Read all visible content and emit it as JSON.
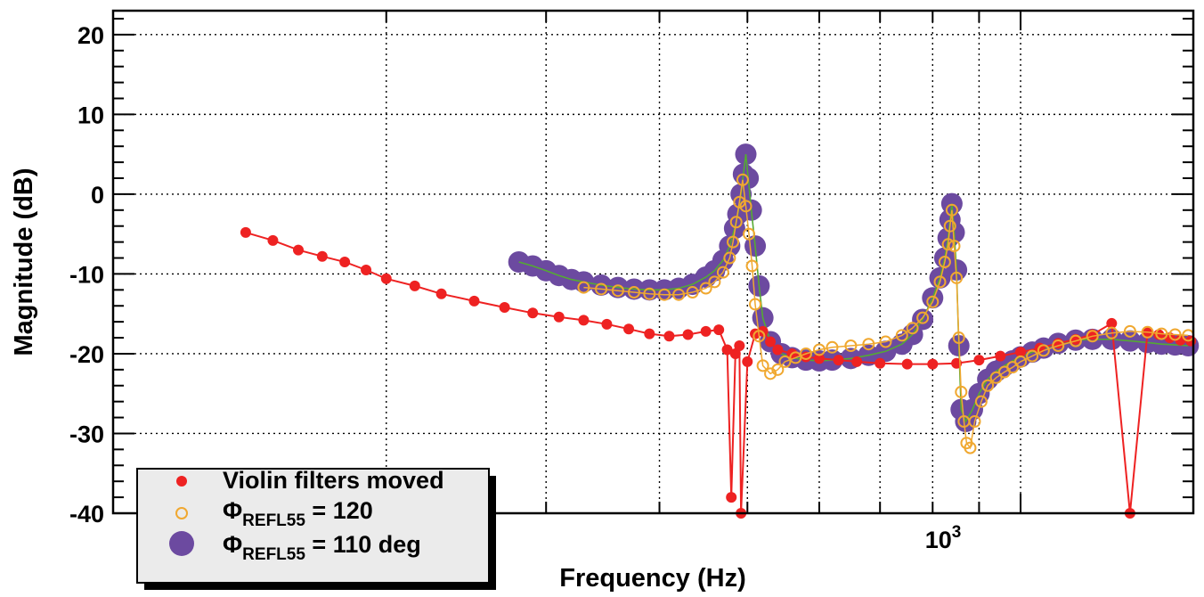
{
  "chart_data": {
    "type": "scatter",
    "title": "",
    "xlabel": "Frequency (Hz)",
    "ylabel": "Magnitude (dB)",
    "xscale": "log",
    "xlim": [
      100,
      1550
    ],
    "ylim": [
      -40,
      23
    ],
    "grid": true,
    "legend_position": "bottom-left",
    "y_ticks": [
      20,
      10,
      0,
      -10,
      -20,
      -30,
      -40
    ],
    "y_tick_labels": [
      "20",
      "10",
      "0",
      "-10",
      "-20",
      "-30",
      "-40"
    ],
    "x_tick_label": {
      "base": "10",
      "exp": "3",
      "value": 1000
    },
    "series": [
      {
        "name": "Violin filters moved",
        "label_html": "Violin filters moved",
        "style": "red-dots-line",
        "color": "#ee2222",
        "x": [
          140,
          150,
          160,
          170,
          180,
          190,
          200,
          215,
          230,
          250,
          270,
          290,
          310,
          330,
          350,
          370,
          390,
          410,
          430,
          450,
          465,
          475,
          480,
          485,
          490,
          492,
          500,
          510,
          520,
          530,
          540,
          560,
          580,
          600,
          630,
          660,
          700,
          750,
          800,
          850,
          900,
          950,
          1000,
          1050,
          1100,
          1150,
          1200,
          1260,
          1320,
          1380,
          1420,
          1460,
          1500,
          1540
        ],
        "y": [
          -4.8,
          -5.8,
          -7,
          -7.8,
          -8.5,
          -9.5,
          -10.6,
          -11.5,
          -12.5,
          -13.4,
          -14.2,
          -14.9,
          -15.4,
          -15.8,
          -16.3,
          -16.9,
          -17.5,
          -17.8,
          -17.6,
          -17.2,
          -17,
          -19.5,
          -38,
          -20,
          -19,
          -40,
          -21,
          -17.5,
          -17.2,
          -18.5,
          -19.5,
          -20,
          -20.4,
          -20.6,
          -20.8,
          -21,
          -21.2,
          -21.3,
          -21.3,
          -21.2,
          -20.8,
          -20.3,
          -19.8,
          -19.3,
          -18.7,
          -18.2,
          -17.6,
          -16.2,
          -40,
          -17.3,
          -17.6,
          -18,
          -18.3,
          -18.4
        ]
      },
      {
        "name": "Φ REFL55 = 120",
        "label_html": "Φ<tspan font-size='19' dy='8'>REFL55</tspan><tspan dy='-8'> = 120</tspan>",
        "style": "orange-open-line",
        "color": "#f0a830",
        "x": [
          330,
          345,
          360,
          375,
          390,
          405,
          420,
          435,
          450,
          460,
          470,
          478,
          482,
          486,
          490,
          494,
          498,
          502,
          506,
          510,
          515,
          520,
          530,
          540,
          550,
          565,
          580,
          600,
          620,
          650,
          680,
          710,
          740,
          760,
          780,
          800,
          815,
          825,
          832,
          836,
          840,
          845,
          850,
          855,
          860,
          866,
          872,
          880,
          890,
          905,
          920,
          940,
          960,
          980,
          1000,
          1030,
          1060,
          1100,
          1150,
          1200,
          1260,
          1320,
          1380,
          1430,
          1480,
          1530
        ],
        "y": [
          -11.7,
          -11.9,
          -12.1,
          -12.3,
          -12.5,
          -12.6,
          -12.6,
          -12.3,
          -11.8,
          -11,
          -9.8,
          -8,
          -6,
          -3.5,
          -1,
          1.8,
          -1.5,
          -5,
          -9,
          -13.8,
          -17.8,
          -21.5,
          -22.5,
          -22,
          -21,
          -20.5,
          -20,
          -19.5,
          -19.2,
          -19,
          -18.8,
          -18.5,
          -17.7,
          -16.8,
          -15.5,
          -13.5,
          -11,
          -8.5,
          -6.3,
          -4,
          -2,
          -6.5,
          -10.5,
          -18,
          -24.8,
          -28.5,
          -31.2,
          -31.8,
          -28.5,
          -26,
          -24,
          -23,
          -22.3,
          -21.7,
          -21,
          -20.3,
          -19.6,
          -19,
          -18.4,
          -17.8,
          -17.4,
          -17.2,
          -17.3,
          -17.5,
          -17.6,
          -17.7
        ]
      },
      {
        "name": "Φ REFL55 = 110 deg",
        "label_html": "Φ<tspan font-size='19' dy='8'>REFL55</tspan><tspan dy='-8'> = 110 deg</tspan>",
        "style": "purple-big-dots",
        "color": "#6c4aa0",
        "x": [
          280,
          290,
          300,
          310,
          320,
          330,
          345,
          360,
          375,
          390,
          405,
          420,
          435,
          450,
          460,
          470,
          478,
          484,
          488,
          492,
          495,
          498,
          501,
          505,
          510,
          515,
          520,
          530,
          545,
          560,
          580,
          600,
          620,
          650,
          680,
          710,
          740,
          760,
          780,
          800,
          815,
          825,
          832,
          836,
          840,
          845,
          850,
          855,
          860,
          870,
          885,
          900,
          920,
          940,
          960,
          980,
          1000,
          1030,
          1060,
          1100,
          1150,
          1200,
          1260,
          1320,
          1380,
          1430,
          1480,
          1530
        ],
        "y": [
          -8.5,
          -9,
          -9.6,
          -10.2,
          -10.7,
          -11,
          -11.4,
          -11.7,
          -11.9,
          -12,
          -12,
          -11.8,
          -11.3,
          -10.4,
          -9.6,
          -8.3,
          -6.5,
          -4.3,
          -2.5,
          0,
          2.5,
          5,
          2,
          -2,
          -6.5,
          -11.5,
          -15.5,
          -18.5,
          -20,
          -20.5,
          -20.8,
          -20.9,
          -20.8,
          -20.6,
          -20.2,
          -19.7,
          -18.8,
          -17.6,
          -15.7,
          -13,
          -10.5,
          -8,
          -5.5,
          -3.2,
          -1.2,
          -4.8,
          -9.5,
          -19,
          -27,
          -28.5,
          -27,
          -25,
          -23.2,
          -22.2,
          -21.5,
          -20.9,
          -20.4,
          -19.8,
          -19.3,
          -18.7,
          -18.3,
          -18.2,
          -18.2,
          -18.4,
          -18.6,
          -18.8,
          -18.9,
          -19
        ]
      }
    ]
  }
}
